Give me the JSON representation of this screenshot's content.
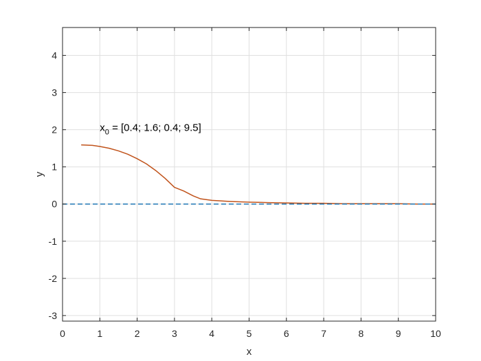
{
  "chart_data": {
    "type": "line",
    "xlabel": "x",
    "ylabel": "y",
    "xlim": [
      0,
      10
    ],
    "ylim": [
      -3.15,
      4.75
    ],
    "xticks": [
      0,
      1,
      2,
      3,
      4,
      5,
      6,
      7,
      8,
      9,
      10
    ],
    "yticks": [
      -3,
      -2,
      -1,
      0,
      1,
      2,
      3,
      4
    ],
    "grid": true,
    "annotation": {
      "base": "x",
      "subscript": "0",
      "text": " = [0.4; 1.6; 0.4; 9.5]",
      "x": 1.0,
      "y": 1.97
    },
    "series": [
      {
        "style": "solid",
        "color": "#c0521a",
        "x": [
          0.5,
          0.8,
          1.0,
          1.25,
          1.5,
          1.75,
          2.0,
          2.25,
          2.5,
          2.75,
          3.0,
          3.25,
          3.5,
          3.7,
          4.0,
          4.5,
          5.0,
          5.5,
          6.0,
          6.5,
          7.0,
          7.5,
          8.0,
          8.5,
          9.0,
          9.5,
          10.0
        ],
        "y": [
          1.59,
          1.58,
          1.55,
          1.5,
          1.43,
          1.34,
          1.22,
          1.08,
          0.9,
          0.69,
          0.45,
          0.35,
          0.22,
          0.14,
          0.1,
          0.07,
          0.05,
          0.04,
          0.03,
          0.02,
          0.02,
          0.01,
          0.01,
          0.01,
          0.01,
          0.0,
          0.0
        ]
      },
      {
        "style": "dashed",
        "color": "#1f77b4",
        "x": [
          0.0,
          10.0
        ],
        "y": [
          0.0,
          0.0
        ]
      }
    ]
  }
}
